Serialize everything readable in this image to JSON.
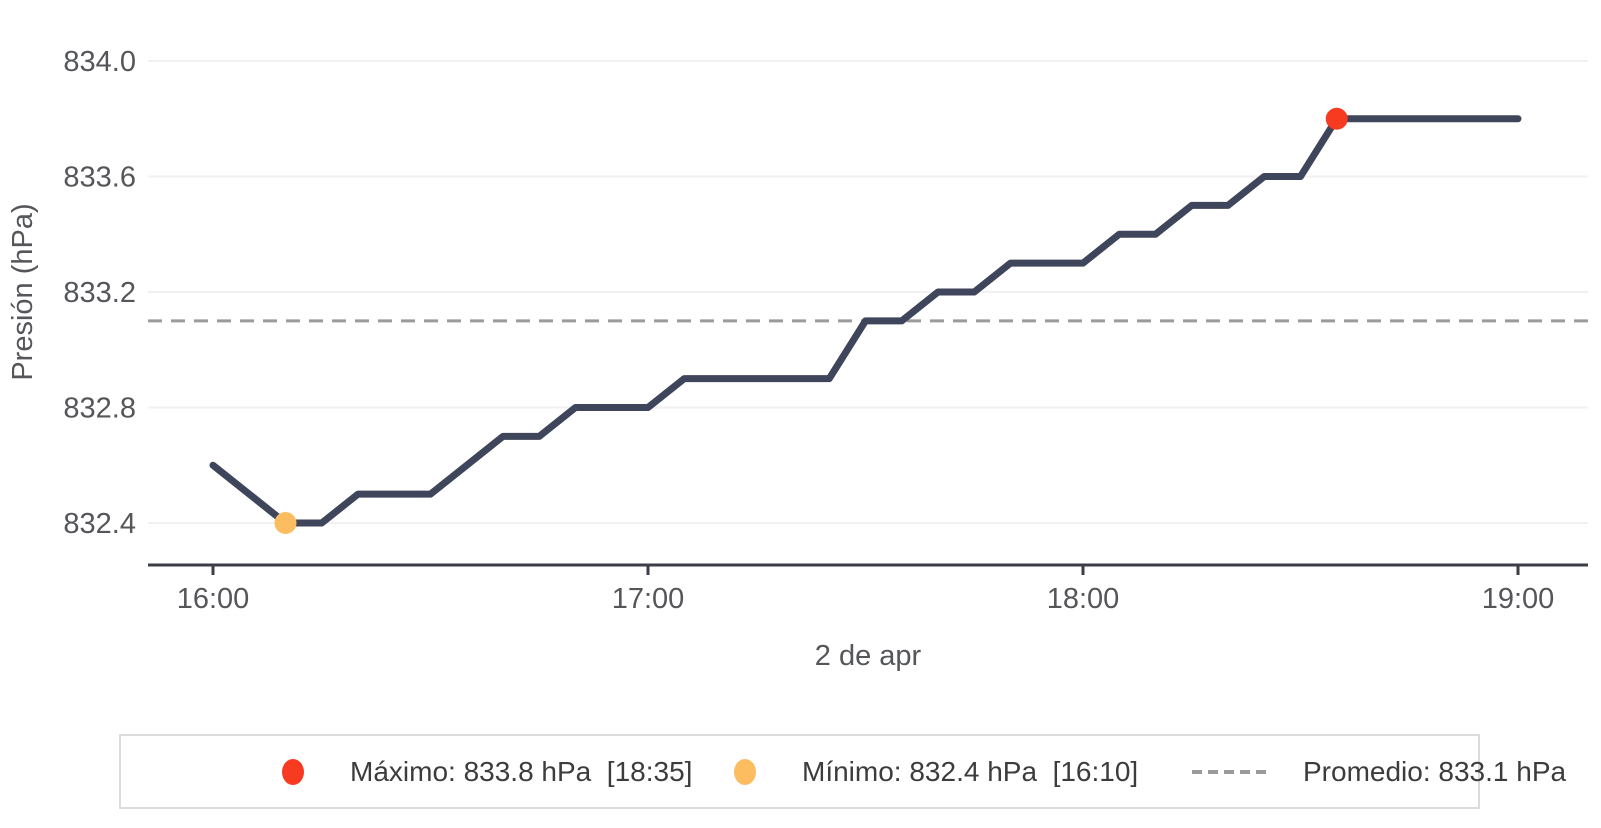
{
  "chart_data": {
    "type": "line",
    "title": "",
    "xlabel": "2 de apr",
    "ylabel": "Presión (hPa)",
    "x": [
      "16:00",
      "16:05",
      "16:10",
      "16:15",
      "16:20",
      "16:25",
      "16:30",
      "16:35",
      "16:40",
      "16:45",
      "16:50",
      "16:55",
      "17:00",
      "17:05",
      "17:10",
      "17:15",
      "17:20",
      "17:25",
      "17:30",
      "17:35",
      "17:40",
      "17:45",
      "17:50",
      "17:55",
      "18:00",
      "18:05",
      "18:10",
      "18:15",
      "18:20",
      "18:25",
      "18:30",
      "18:35",
      "18:40",
      "18:45",
      "18:50",
      "18:55",
      "19:00"
    ],
    "series": [
      {
        "name": "Presión",
        "values": [
          832.6,
          832.5,
          832.4,
          832.4,
          832.5,
          832.5,
          832.5,
          832.6,
          832.7,
          832.7,
          832.8,
          832.8,
          832.8,
          832.9,
          832.9,
          832.9,
          832.9,
          832.9,
          833.1,
          833.1,
          833.2,
          833.2,
          833.3,
          833.3,
          833.3,
          833.4,
          833.4,
          833.5,
          833.5,
          833.6,
          833.6,
          833.8,
          833.8,
          833.8,
          833.8,
          833.8,
          833.8
        ]
      }
    ],
    "x_ticks": [
      "16:00",
      "17:00",
      "18:00",
      "19:00"
    ],
    "y_ticks": [
      832.4,
      832.8,
      833.2,
      833.6,
      834.0
    ],
    "y_tick_labels": [
      "832.4",
      "832.8",
      "833.2",
      "833.6",
      "834.0"
    ],
    "ylim": [
      832.4,
      834.0
    ],
    "x_range_minutes": 180,
    "grid": true,
    "legend_position": "bottom",
    "line_color": "#3f455a",
    "grid_color": "#f1f1f2",
    "axis_color": "#3b3e45",
    "text_color": "#54565a",
    "average_line": {
      "value": 833.1,
      "style": "dashed",
      "color": "#9b9b9b"
    },
    "max_point": {
      "time": "18:35",
      "value": 833.8,
      "color": "#f73b21"
    },
    "min_point": {
      "time": "16:10",
      "value": 832.4,
      "color": "#fbbd60"
    }
  },
  "legend": {
    "max_label": "Máximo: 833.8 hPa  [18:35]",
    "min_label": "Mínimo: 832.4 hPa  [16:10]",
    "avg_label": "Promedio: 833.1 hPa",
    "max_icon_color": "#f73b21",
    "min_icon_color": "#fbbd60",
    "avg_line_color": "#9b9b9b"
  }
}
